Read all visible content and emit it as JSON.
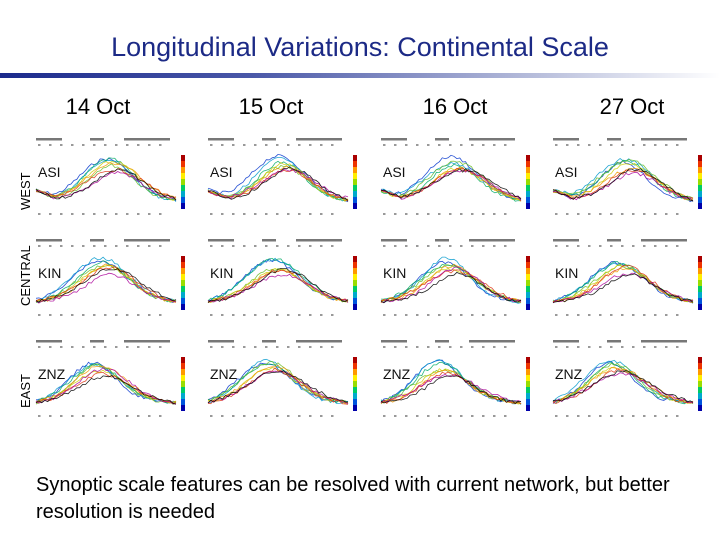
{
  "slide": {
    "title": "Longitudinal Variations: Continental Scale",
    "footer": "Synoptic scale features can be resolved with current network, but better resolution is needed"
  },
  "columns": [
    "14 Oct",
    "15 Oct",
    "16 Oct",
    "27 Oct"
  ],
  "rows": [
    {
      "label": "WEST",
      "station": "ASI"
    },
    {
      "label": "CENTRAL",
      "station": "KIN"
    },
    {
      "label": "EAST",
      "station": "ZNZ"
    }
  ],
  "colors": {
    "title": "#1c2a86",
    "rule": "#1b2a8c",
    "series": [
      "#0033cc",
      "#0099cc",
      "#00aa66",
      "#66bb22",
      "#cccc00",
      "#ee9900",
      "#dd3311",
      "#aa0099",
      "#000000"
    ]
  }
}
